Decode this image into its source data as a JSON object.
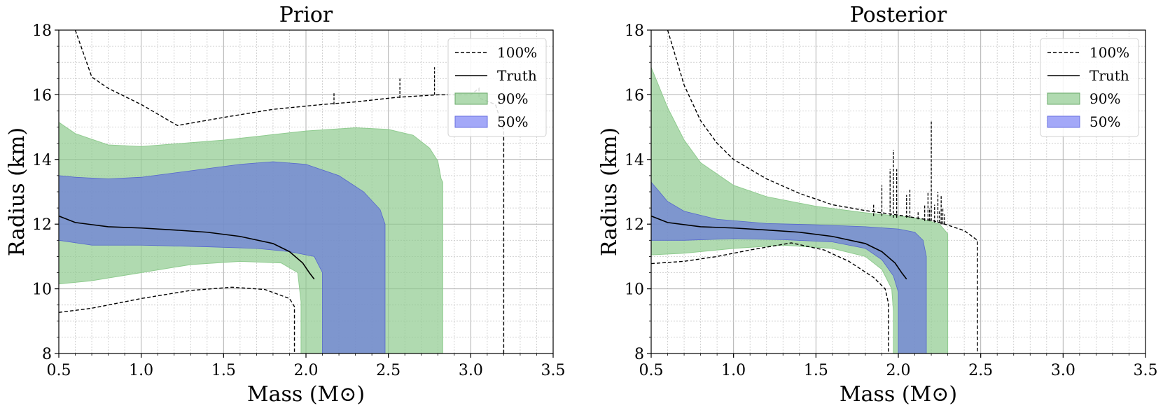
{
  "chart_data": [
    {
      "type": "area",
      "title": "Prior",
      "xlabel": "Mass (M⊙)",
      "ylabel": "Radius (km)",
      "xlim": [
        0.5,
        3.5
      ],
      "ylim": [
        8,
        18
      ],
      "xticks": [
        "0.5",
        "1.0",
        "1.5",
        "2.0",
        "2.5",
        "3.0",
        "3.5"
      ],
      "yticks": [
        "8",
        "10",
        "12",
        "14",
        "16",
        "18"
      ],
      "grid": true,
      "legend_position": "top-right",
      "colors": {
        "band90": "#8fcb8f",
        "band50": "#6e7fd8",
        "truth": "#000000",
        "bound100": "#000000"
      },
      "legend": [
        "100%",
        "Truth",
        "90%",
        "50%"
      ],
      "band90": {
        "upper": [
          [
            0.5,
            15.15
          ],
          [
            0.6,
            14.8
          ],
          [
            0.8,
            14.45
          ],
          [
            1.0,
            14.4
          ],
          [
            1.5,
            14.6
          ],
          [
            2.0,
            14.88
          ],
          [
            2.3,
            14.98
          ],
          [
            2.5,
            14.93
          ],
          [
            2.65,
            14.75
          ],
          [
            2.75,
            14.35
          ],
          [
            2.8,
            13.95
          ],
          [
            2.82,
            13.4
          ],
          [
            2.83,
            13.3
          ],
          [
            2.83,
            8
          ]
        ],
        "lower": [
          [
            0.5,
            10.15
          ],
          [
            0.7,
            10.25
          ],
          [
            1.0,
            10.5
          ],
          [
            1.3,
            10.75
          ],
          [
            1.6,
            10.85
          ],
          [
            1.85,
            10.8
          ],
          [
            1.95,
            10.5
          ],
          [
            1.97,
            9.6
          ],
          [
            1.97,
            8
          ]
        ]
      },
      "band50": {
        "upper": [
          [
            0.5,
            13.5
          ],
          [
            0.6,
            13.45
          ],
          [
            0.8,
            13.4
          ],
          [
            1.0,
            13.45
          ],
          [
            1.3,
            13.65
          ],
          [
            1.6,
            13.85
          ],
          [
            1.8,
            13.93
          ],
          [
            2.0,
            13.85
          ],
          [
            2.2,
            13.5
          ],
          [
            2.35,
            13.0
          ],
          [
            2.45,
            12.45
          ],
          [
            2.48,
            12.0
          ],
          [
            2.48,
            8
          ]
        ],
        "lower": [
          [
            0.5,
            11.5
          ],
          [
            0.7,
            11.35
          ],
          [
            1.0,
            11.35
          ],
          [
            1.4,
            11.3
          ],
          [
            1.7,
            11.25
          ],
          [
            1.9,
            11.15
          ],
          [
            2.05,
            11.0
          ],
          [
            2.1,
            10.5
          ],
          [
            2.1,
            8
          ]
        ]
      },
      "bound100_upper": [
        [
          0.6,
          18.0
        ],
        [
          0.7,
          16.55
        ],
        [
          0.8,
          16.2
        ],
        [
          1.0,
          15.7
        ],
        [
          1.22,
          15.05
        ],
        [
          1.5,
          15.3
        ],
        [
          1.8,
          15.55
        ],
        [
          2.1,
          15.7
        ],
        [
          2.3,
          15.78
        ],
        [
          2.55,
          15.92
        ],
        [
          2.8,
          16.0
        ],
        [
          3.0,
          16.0
        ],
        [
          3.05,
          16.2
        ],
        [
          3.05,
          15.9
        ],
        [
          3.15,
          15.7
        ],
        [
          3.2,
          14.9
        ],
        [
          3.2,
          8.0
        ]
      ],
      "bound100_lower": [
        [
          0.5,
          9.27
        ],
        [
          0.7,
          9.4
        ],
        [
          1.0,
          9.7
        ],
        [
          1.3,
          9.95
        ],
        [
          1.55,
          10.05
        ],
        [
          1.75,
          9.98
        ],
        [
          1.9,
          9.7
        ],
        [
          1.93,
          9.45
        ],
        [
          1.93,
          8.0
        ]
      ],
      "bound100_spikes": [
        [
          2.17,
          15.7,
          16.08
        ],
        [
          2.57,
          15.9,
          16.5
        ],
        [
          2.78,
          16.0,
          16.85
        ]
      ],
      "truth": [
        [
          0.5,
          12.25
        ],
        [
          0.6,
          12.05
        ],
        [
          0.8,
          11.92
        ],
        [
          1.0,
          11.88
        ],
        [
          1.2,
          11.82
        ],
        [
          1.4,
          11.75
        ],
        [
          1.6,
          11.62
        ],
        [
          1.8,
          11.4
        ],
        [
          1.9,
          11.15
        ],
        [
          1.98,
          10.8
        ],
        [
          2.02,
          10.5
        ],
        [
          2.05,
          10.3
        ]
      ]
    },
    {
      "type": "area",
      "title": "Posterior",
      "xlabel": "Mass (M⊙)",
      "ylabel": "Radius (km)",
      "xlim": [
        0.5,
        3.5
      ],
      "ylim": [
        8,
        18
      ],
      "xticks": [
        "0.5",
        "1.0",
        "1.5",
        "2.0",
        "2.5",
        "3.0",
        "3.5"
      ],
      "yticks": [
        "8",
        "10",
        "12",
        "14",
        "16",
        "18"
      ],
      "grid": true,
      "legend_position": "top-right",
      "colors": {
        "band90": "#8fcb8f",
        "band50": "#6e7fd8",
        "truth": "#000000",
        "bound100": "#000000"
      },
      "legend": [
        "100%",
        "Truth",
        "90%",
        "50%"
      ],
      "band90": {
        "upper": [
          [
            0.5,
            16.85
          ],
          [
            0.6,
            15.6
          ],
          [
            0.7,
            14.6
          ],
          [
            0.8,
            13.9
          ],
          [
            1.0,
            13.2
          ],
          [
            1.2,
            12.85
          ],
          [
            1.5,
            12.55
          ],
          [
            1.8,
            12.35
          ],
          [
            2.0,
            12.25
          ],
          [
            2.15,
            12.15
          ],
          [
            2.25,
            12.0
          ],
          [
            2.3,
            11.7
          ],
          [
            2.3,
            8.0
          ]
        ],
        "lower": [
          [
            0.5,
            11.05
          ],
          [
            0.7,
            11.1
          ],
          [
            1.0,
            11.25
          ],
          [
            1.3,
            11.35
          ],
          [
            1.6,
            11.25
          ],
          [
            1.8,
            11.0
          ],
          [
            1.9,
            10.6
          ],
          [
            1.96,
            10.0
          ],
          [
            1.97,
            9.3
          ],
          [
            1.97,
            8.0
          ]
        ]
      },
      "band50": {
        "upper": [
          [
            0.5,
            13.3
          ],
          [
            0.6,
            12.7
          ],
          [
            0.7,
            12.4
          ],
          [
            0.9,
            12.15
          ],
          [
            1.2,
            12.02
          ],
          [
            1.5,
            11.98
          ],
          [
            1.8,
            11.92
          ],
          [
            2.0,
            11.85
          ],
          [
            2.1,
            11.75
          ],
          [
            2.15,
            11.5
          ],
          [
            2.17,
            11.0
          ],
          [
            2.17,
            8.0
          ]
        ],
        "lower": [
          [
            0.5,
            11.5
          ],
          [
            0.7,
            11.5
          ],
          [
            1.0,
            11.55
          ],
          [
            1.3,
            11.52
          ],
          [
            1.6,
            11.45
          ],
          [
            1.8,
            11.25
          ],
          [
            1.9,
            10.9
          ],
          [
            1.97,
            10.4
          ],
          [
            2.0,
            9.9
          ],
          [
            2.0,
            8.0
          ]
        ]
      },
      "bound100_upper": [
        [
          0.6,
          18.0
        ],
        [
          0.7,
          16.3
        ],
        [
          0.8,
          15.2
        ],
        [
          0.9,
          14.5
        ],
        [
          1.0,
          14.0
        ],
        [
          1.2,
          13.4
        ],
        [
          1.4,
          12.95
        ],
        [
          1.6,
          12.6
        ],
        [
          1.8,
          12.42
        ],
        [
          2.0,
          12.28
        ],
        [
          2.2,
          12.12
        ],
        [
          2.3,
          11.97
        ],
        [
          2.4,
          11.8
        ],
        [
          2.48,
          11.5
        ],
        [
          2.48,
          8.0
        ]
      ],
      "bound100_lower": [
        [
          0.5,
          10.78
        ],
        [
          0.7,
          10.85
        ],
        [
          0.9,
          11.0
        ],
        [
          1.1,
          11.2
        ],
        [
          1.35,
          11.42
        ],
        [
          1.55,
          11.2
        ],
        [
          1.7,
          10.85
        ],
        [
          1.85,
          10.35
        ],
        [
          1.92,
          10.0
        ],
        [
          1.94,
          9.55
        ],
        [
          1.94,
          8.0
        ]
      ],
      "bound100_spikes": [
        [
          1.85,
          12.25,
          12.6
        ],
        [
          1.9,
          12.25,
          13.2
        ],
        [
          1.95,
          12.25,
          13.7
        ],
        [
          1.97,
          12.2,
          14.3
        ],
        [
          1.99,
          12.2,
          13.7
        ],
        [
          2.05,
          12.2,
          12.9
        ],
        [
          2.07,
          12.2,
          13.1
        ],
        [
          2.12,
          12.15,
          12.4
        ],
        [
          2.16,
          12.1,
          12.6
        ],
        [
          2.18,
          12.1,
          13.0
        ],
        [
          2.19,
          12.1,
          12.5
        ],
        [
          2.2,
          12.1,
          15.2
        ],
        [
          2.22,
          12.05,
          12.6
        ],
        [
          2.24,
          12.05,
          13.0
        ],
        [
          2.25,
          12.05,
          12.4
        ],
        [
          2.26,
          12.0,
          12.9
        ],
        [
          2.27,
          12.0,
          12.5
        ],
        [
          2.28,
          12.0,
          12.3
        ]
      ],
      "truth": [
        [
          0.5,
          12.25
        ],
        [
          0.6,
          12.05
        ],
        [
          0.8,
          11.92
        ],
        [
          1.0,
          11.88
        ],
        [
          1.2,
          11.82
        ],
        [
          1.4,
          11.75
        ],
        [
          1.6,
          11.62
        ],
        [
          1.8,
          11.4
        ],
        [
          1.9,
          11.15
        ],
        [
          1.98,
          10.8
        ],
        [
          2.02,
          10.5
        ],
        [
          2.05,
          10.3
        ]
      ]
    }
  ]
}
